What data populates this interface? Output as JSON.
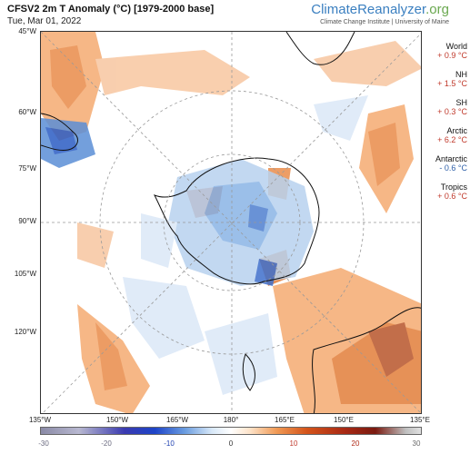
{
  "header": {
    "title": "CFSV2 2m T Anomaly (°C) [1979-2000 base]",
    "date": "Tue, Mar 01, 2022",
    "brand_main": "ClimateReanalyzer",
    "brand_tld": ".org",
    "brand_sub": "Climate Change Institute | University of Maine"
  },
  "map": {
    "lat_labels": [
      "45°W",
      "60°W",
      "75°W",
      "90°W",
      "105°W",
      "120°W"
    ],
    "lon_labels": [
      "135°W",
      "150°W",
      "165°W",
      "180°",
      "165°E",
      "150°E",
      "135°E"
    ]
  },
  "stats": [
    {
      "name": "World",
      "value": "+ 0.9 °C",
      "sign": "pos"
    },
    {
      "name": "NH",
      "value": "+ 1.5 °C",
      "sign": "pos"
    },
    {
      "name": "SH",
      "value": "+ 0.3 °C",
      "sign": "pos"
    },
    {
      "name": "Arctic",
      "value": "+ 6.2 °C",
      "sign": "pos"
    },
    {
      "name": "Antarctic",
      "value": "- 0.6 °C",
      "sign": "neg"
    },
    {
      "name": "Tropics",
      "value": "+ 0.6 °C",
      "sign": "pos"
    }
  ],
  "colorbar": {
    "ticks": [
      "-30",
      "-20",
      "-10",
      "0",
      "10",
      "20",
      "30"
    ],
    "tick_colors": [
      "#6b6b80",
      "#6b6b80",
      "#1d3fb0",
      "#333333",
      "#c0392b",
      "#b02a17",
      "#6b6b6b"
    ]
  }
}
